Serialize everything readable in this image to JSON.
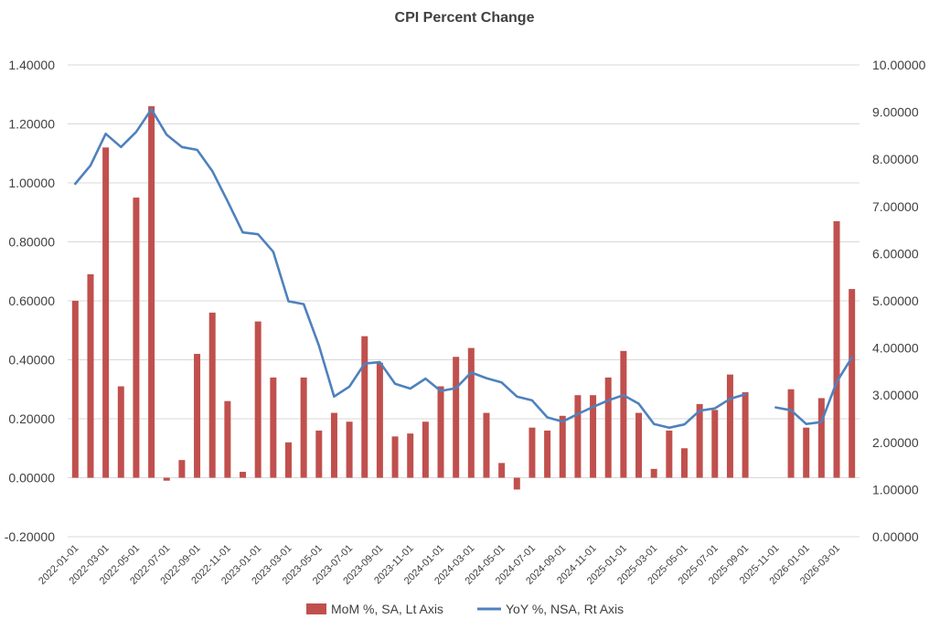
{
  "chart_data": {
    "type": "bar",
    "title": "CPI Percent Change",
    "x": [
      "2022-01-01",
      "2022-02-01",
      "2022-03-01",
      "2022-04-01",
      "2022-05-01",
      "2022-06-01",
      "2022-07-01",
      "2022-08-01",
      "2022-09-01",
      "2022-10-01",
      "2022-11-01",
      "2022-12-01",
      "2023-01-01",
      "2023-02-01",
      "2023-03-01",
      "2023-04-01",
      "2023-05-01",
      "2023-06-01",
      "2023-07-01",
      "2023-08-01",
      "2023-09-01",
      "2023-10-01",
      "2023-11-01",
      "2023-12-01",
      "2024-01-01",
      "2024-02-01",
      "2024-03-01",
      "2024-04-01",
      "2024-05-01",
      "2024-06-01",
      "2024-07-01",
      "2024-08-01",
      "2024-09-01",
      "2024-10-01",
      "2024-11-01",
      "2024-12-01",
      "2025-01-01",
      "2025-02-01",
      "2025-03-01",
      "2025-04-01",
      "2025-05-01",
      "2025-06-01",
      "2025-07-01",
      "2025-08-01",
      "2025-09-01",
      "2025-10-01",
      "2025-11-01",
      "2025-12-01",
      "2026-01-01",
      "2026-02-01",
      "2026-03-01",
      "2026-04-01"
    ],
    "x_tick_labels": [
      "2022-01-01",
      "2022-03-01",
      "2022-05-01",
      "2022-07-01",
      "2022-09-01",
      "2022-11-01",
      "2023-01-01",
      "2023-03-01",
      "2023-05-01",
      "2023-07-01",
      "2023-09-01",
      "2023-11-01",
      "2024-01-01",
      "2024-03-01",
      "2024-05-01",
      "2024-07-01",
      "2024-09-01",
      "2024-11-01",
      "2025-01-01",
      "2025-03-01",
      "2025-05-01",
      "2025-07-01",
      "2025-09-01",
      "2025-11-01",
      "2026-01-01",
      "2026-03-01"
    ],
    "series": [
      {
        "name": "MoM %, SA, Lt Axis",
        "type": "bar",
        "axis": "left",
        "color": "#C0504D",
        "values": [
          0.6,
          0.69,
          1.12,
          0.31,
          0.95,
          1.26,
          -0.01,
          0.06,
          0.42,
          0.56,
          0.26,
          0.02,
          0.53,
          0.34,
          0.12,
          0.34,
          0.16,
          0.22,
          0.19,
          0.48,
          0.39,
          0.14,
          0.15,
          0.19,
          0.31,
          0.41,
          0.44,
          0.22,
          0.05,
          -0.04,
          0.17,
          0.16,
          0.21,
          0.28,
          0.28,
          0.34,
          0.43,
          0.22,
          0.03,
          0.16,
          0.1,
          0.25,
          0.23,
          0.35,
          0.29,
          null,
          null,
          0.3,
          0.17,
          0.27,
          0.87,
          0.64
        ]
      },
      {
        "name": "YoY %, NSA, Rt Axis",
        "type": "line",
        "axis": "right",
        "color": "#4F81BD",
        "values": [
          7.48,
          7.87,
          8.54,
          8.26,
          8.58,
          9.06,
          8.52,
          8.26,
          8.2,
          7.75,
          7.11,
          6.45,
          6.41,
          6.04,
          4.99,
          4.93,
          4.05,
          2.97,
          3.18,
          3.67,
          3.7,
          3.24,
          3.14,
          3.35,
          3.09,
          3.15,
          3.48,
          3.36,
          3.27,
          2.97,
          2.89,
          2.53,
          2.44,
          2.6,
          2.75,
          2.89,
          3.0,
          2.82,
          2.39,
          2.31,
          2.38,
          2.67,
          2.72,
          2.92,
          3.02,
          null,
          2.74,
          2.68,
          2.39,
          2.43,
          3.28,
          3.8
        ]
      }
    ],
    "left_axis": {
      "min": -0.2,
      "max": 1.4,
      "step": 0.2,
      "decimals": 5,
      "tick_labels": [
        "-0.20000",
        "0.00000",
        "0.20000",
        "0.40000",
        "0.60000",
        "0.80000",
        "1.00000",
        "1.20000",
        "1.40000"
      ]
    },
    "right_axis": {
      "min": 0,
      "max": 10,
      "step": 1,
      "decimals": 5,
      "tick_labels": [
        "0.00000",
        "1.00000",
        "2.00000",
        "3.00000",
        "4.00000",
        "5.00000",
        "6.00000",
        "7.00000",
        "8.00000",
        "9.00000",
        "10.00000"
      ]
    },
    "grid": true,
    "legend_position": "bottom"
  }
}
